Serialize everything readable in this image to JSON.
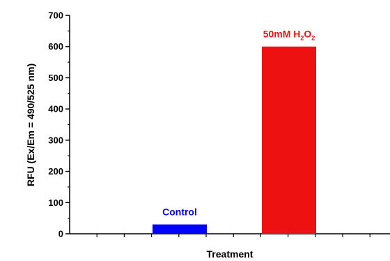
{
  "chart_data": {
    "type": "bar",
    "categories": [
      "Control",
      "50mM H2O2"
    ],
    "values": [
      30,
      600
    ],
    "colors": [
      "#0000ff",
      "#ee1111"
    ],
    "labels": [
      {
        "main": "Control",
        "parts": []
      },
      {
        "main": "50mM H",
        "parts": [
          {
            "text": "2",
            "sub": true
          },
          {
            "text": "O",
            "sub": false
          },
          {
            "text": "2",
            "sub": true
          }
        ]
      }
    ],
    "xlabel": "Treatment",
    "ylabel": "RFU (Ex/Em = 490/525 nm)",
    "ylim": [
      0,
      700
    ],
    "yticks": [
      "0",
      "100",
      "200",
      "300",
      "400",
      "500",
      "600",
      "700"
    ],
    "grid": false,
    "legend": "none"
  }
}
